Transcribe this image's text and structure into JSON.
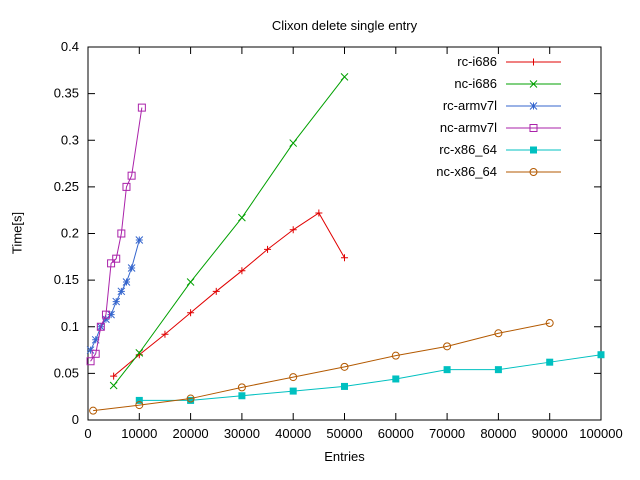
{
  "chart_data": {
    "type": "line",
    "title": "Clixon delete single entry",
    "xlabel": "Entries",
    "ylabel": "Time[s]",
    "xlim": [
      0,
      100000
    ],
    "ylim": [
      0,
      0.4
    ],
    "x_ticks": [
      0,
      10000,
      20000,
      30000,
      40000,
      50000,
      60000,
      70000,
      80000,
      90000,
      100000
    ],
    "y_ticks": [
      0,
      0.05,
      0.1,
      0.15,
      0.2,
      0.25,
      0.3,
      0.35,
      0.4
    ],
    "grid": false,
    "legend_position": "top-right-inside",
    "background": "#ffffff",
    "axis_color": "#000000",
    "series": [
      {
        "name": "rc-i686",
        "color": "#e00000",
        "marker": "plus",
        "x": [
          5000,
          10000,
          15000,
          20000,
          25000,
          30000,
          35000,
          40000,
          45000,
          50000
        ],
        "y": [
          0.047,
          0.07,
          0.092,
          0.115,
          0.138,
          0.16,
          0.183,
          0.204,
          0.222,
          0.174
        ]
      },
      {
        "name": "nc-i686",
        "color": "#00a000",
        "marker": "cross",
        "x": [
          5000,
          10000,
          20000,
          30000,
          40000,
          50000
        ],
        "y": [
          0.037,
          0.072,
          0.148,
          0.217,
          0.297,
          0.368
        ]
      },
      {
        "name": "rc-armv7l",
        "color": "#3465cd",
        "marker": "star",
        "x": [
          500,
          1500,
          2500,
          3500,
          4500,
          5500,
          6500,
          7500,
          8500,
          10000
        ],
        "y": [
          0.075,
          0.086,
          0.1,
          0.108,
          0.113,
          0.127,
          0.138,
          0.148,
          0.163,
          0.193
        ]
      },
      {
        "name": "nc-armv7l",
        "color": "#aa22aa",
        "marker": "square-open",
        "x": [
          500,
          1500,
          2500,
          3500,
          4500,
          5500,
          6500,
          7500,
          8500,
          10500
        ],
        "y": [
          0.063,
          0.071,
          0.1,
          0.113,
          0.168,
          0.173,
          0.2,
          0.25,
          0.262,
          0.335
        ]
      },
      {
        "name": "rc-x86_64",
        "color": "#00c0c0",
        "marker": "square-filled",
        "x": [
          10000,
          20000,
          30000,
          40000,
          50000,
          60000,
          70000,
          80000,
          90000,
          100000
        ],
        "y": [
          0.021,
          0.021,
          0.026,
          0.031,
          0.036,
          0.044,
          0.054,
          0.054,
          0.062,
          0.07
        ]
      },
      {
        "name": "nc-x86_64",
        "color": "#b35900",
        "marker": "circle-open",
        "x": [
          1000,
          10000,
          20000,
          30000,
          40000,
          50000,
          60000,
          70000,
          80000,
          90000
        ],
        "y": [
          0.01,
          0.016,
          0.023,
          0.035,
          0.046,
          0.057,
          0.069,
          0.079,
          0.093,
          0.104
        ]
      }
    ]
  }
}
